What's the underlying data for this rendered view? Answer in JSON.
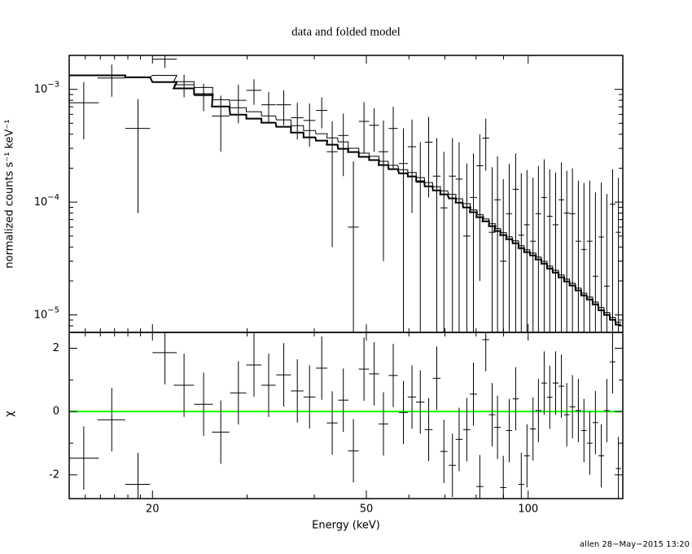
{
  "chart_data": [
    {
      "type": "errorbar",
      "title": "data and folded model",
      "ylabel": "normalized counts s⁻¹ keV⁻¹",
      "xlog": true,
      "ylog": true,
      "ylim": [
        7e-06,
        0.002
      ],
      "yticks": [
        {
          "value": 1e-05,
          "label": "10",
          "sup": "−5"
        },
        {
          "value": 0.0001,
          "label": "10",
          "sup": "−4"
        },
        {
          "value": 0.001,
          "label": "10",
          "sup": "−3"
        }
      ],
      "yticks_minor": [
        8e-06,
        9e-06,
        2e-05,
        3e-05,
        4e-05,
        5e-05,
        6e-05,
        7e-05,
        8e-05,
        9e-05,
        0.0002,
        0.0003,
        0.0004,
        0.0005,
        0.0006,
        0.0007,
        0.0008,
        0.0009
      ],
      "x": [
        14.9,
        16.8,
        18.8,
        21.1,
        22.9,
        24.9,
        26.8,
        28.9,
        30.9,
        32.9,
        35.1,
        37.2,
        39.2,
        41.3,
        43.2,
        45.3,
        47.3,
        49.5,
        51.7,
        53.8,
        56.1,
        58.6,
        60.8,
        63.0,
        65.3,
        67.6,
        69.7,
        72.3,
        74.4,
        76.9,
        79.1,
        81.3,
        83.4,
        85.7,
        87.7,
        89.9,
        92.2,
        94.8,
        97.1,
        99.5,
        102.1,
        104.5,
        107.1,
        109.7,
        112.5,
        115.3,
        118.0,
        120.9,
        124.0,
        127.0,
        130.2,
        133.4,
        136.8,
        140.1,
        143.6,
        147.2
      ],
      "xerr": [
        1.0,
        1.0,
        1.0,
        1.1,
        1.0,
        1.0,
        1.0,
        1.0,
        1.0,
        1.0,
        1.1,
        1.0,
        1.0,
        1.0,
        1.0,
        1.0,
        1.1,
        1.1,
        1.1,
        1.1,
        1.1,
        1.1,
        1.1,
        1.1,
        1.1,
        1.1,
        1.1,
        1.1,
        1.1,
        1.2,
        1.2,
        1.2,
        1.2,
        1.2,
        1.2,
        1.2,
        1.2,
        1.2,
        1.2,
        1.2,
        1.3,
        1.3,
        1.3,
        1.3,
        1.4,
        1.4,
        1.4,
        1.5,
        1.5,
        1.5,
        1.6,
        1.6,
        1.6,
        1.7,
        1.7,
        1.7
      ],
      "series": [
        {
          "style": "errorbar",
          "color": "#000000",
          "line_width": 1,
          "values": [
            0.00076,
            0.00126,
            0.00045,
            0.00185,
            0.0011,
            0.00088,
            0.00058,
            0.0008,
            0.00098,
            0.00073,
            0.00073,
            0.00056,
            0.00053,
            0.00065,
            0.00028,
            0.00039,
            6e-05,
            0.00052,
            0.00048,
            0.00028,
            0.00045,
            0.00022,
            0.00031,
            0.00015,
            0.00034,
            0.00017,
            8.9e-05,
            0.00017,
            0.00016,
            5e-05,
            0.00011,
            0.00021,
            0.00037,
            5.4e-05,
            0.000105,
            3e-05,
            7.9e-05,
            0.00013,
            5.1e-05,
            6.3e-05,
            4.5e-05,
            7.9e-05,
            0.00011,
            7.5e-05,
            6.3e-05,
            0.000105,
            8e-05,
            7.9e-05,
            4.5e-05,
            3.8e-05,
            4.5e-05,
            2.2e-05,
            4.9e-05,
            1.8e-05,
            9.6e-05,
            5.4e-05
          ],
          "yerr": [
            0.0004,
            0.0004,
            0.00037,
            0.0003,
            0.00025,
            0.00024,
            0.0003,
            0.0003,
            0.00025,
            0.00022,
            0.00025,
            0.0002,
            0.00022,
            0.0002,
            0.00024,
            0.00022,
            0.00017,
            0.00025,
            0.0002,
            0.00025,
            0.00025,
            0.00023,
            0.00023,
            0.00019,
            0.00023,
            0.0002,
            0.00019,
            0.0002,
            0.00018,
            0.00017,
            0.00016,
            0.00019,
            0.00018,
            0.00015,
            0.00015,
            0.00013,
            0.00014,
            0.00014,
            0.00013,
            0.00013,
            0.00012,
            0.00013,
            0.00013,
            0.00012,
            0.00012,
            0.00012,
            0.00011,
            0.00012,
            0.00011,
            0.00011,
            0.00011,
            0.0001,
            0.0001,
            0.0001,
            0.0001,
            0.00011
          ]
        },
        {
          "style": "step",
          "color": "#000000",
          "line_width": 1,
          "values": [
            0.00133,
            0.00133,
            0.00128,
            0.00133,
            0.00117,
            0.00104,
            0.00081,
            0.000687,
            0.000633,
            0.000582,
            0.000536,
            0.000476,
            0.000431,
            0.000404,
            0.000371,
            0.000342,
            0.0003,
            0.000272,
            0.000255,
            0.00023,
            0.000212,
            0.000194,
            0.000183,
            0.000165,
            0.000149,
            0.000137,
            0.000126,
            0.000117,
            0.000107,
            9.69e-05,
            8.54e-05,
            7.72e-05,
            7.1e-05,
            6.43e-05,
            5.82e-05,
            5.36e-05,
            4.92e-05,
            4.54e-05,
            4.11e-05,
            3.78e-05,
            3.54e-05,
            3.26e-05,
            2.99e-05,
            2.71e-05,
            2.49e-05,
            2.26e-05,
            2.08e-05,
            1.91e-05,
            1.73e-05,
            1.56e-05,
            1.44e-05,
            1.3e-05,
            1.16e-05,
            1.05e-05,
            9.51e-06,
            8.61e-06
          ]
        },
        {
          "style": "step",
          "color": "#000000",
          "line_width": 2,
          "values": [
            0.00133,
            0.00133,
            0.00128,
            0.00116,
            0.00102,
            0.000905,
            0.000705,
            0.000597,
            0.00055,
            0.000506,
            0.000466,
            0.000414,
            0.000375,
            0.000351,
            0.000323,
            0.000297,
            0.000278,
            0.000252,
            0.000236,
            0.000213,
            0.000196,
            0.00018,
            0.000169,
            0.000153,
            0.000138,
            0.000127,
            0.000117,
            0.000108,
            9.9e-05,
            8.97e-05,
            8.13e-05,
            7.35e-05,
            6.76e-05,
            6.12e-05,
            5.54e-05,
            5.1e-05,
            4.69e-05,
            4.32e-05,
            3.91e-05,
            3.6e-05,
            3.37e-05,
            3.1e-05,
            2.85e-05,
            2.58e-05,
            2.37e-05,
            2.15e-05,
            1.98e-05,
            1.82e-05,
            1.65e-05,
            1.49e-05,
            1.37e-05,
            1.24e-05,
            1.1e-05,
            1e-05,
            9.06e-06,
            8.2e-06
          ]
        }
      ]
    },
    {
      "type": "errorbar",
      "xlabel": "Energy (keV)",
      "ylabel": "χ",
      "xlog": true,
      "xlim": [
        14,
        150
      ],
      "xticks": [
        20,
        50,
        100
      ],
      "xticks_minor": [
        15,
        16,
        17,
        18,
        19,
        30,
        40,
        60,
        70,
        80,
        90
      ],
      "ylim": [
        -2.75,
        2.5
      ],
      "yticks": [
        -2,
        0,
        2
      ],
      "yticks_minor": [
        -1,
        1
      ],
      "reference_line": {
        "value": 0,
        "color": "#00ff00"
      },
      "series": [
        {
          "style": "errorbar",
          "color": "#000000",
          "line_width": 1,
          "values": [
            -1.47,
            -0.26,
            -2.3,
            1.86,
            0.83,
            0.23,
            -0.65,
            0.59,
            1.47,
            0.83,
            1.16,
            0.65,
            0.46,
            1.37,
            -0.36,
            0.36,
            -1.24,
            1.34,
            1.19,
            -0.39,
            1.14,
            -0.03,
            0.46,
            0.3,
            -0.57,
            1.05,
            -1.26,
            -1.7,
            -0.88,
            -0.57,
            0.55,
            -2.37,
            2.27,
            -0.1,
            -0.5,
            -2.4,
            -0.6,
            0.4,
            -2.3,
            -1.4,
            -0.55,
            0.03,
            0.9,
            0.45,
            0.9,
            0.8,
            -0.1,
            0.15,
            0.03,
            -0.6,
            -1.0,
            -0.35,
            -1.4,
            0.03,
            1.57,
            -1.8
          ],
          "yerr": [
            1,
            1,
            1,
            1,
            1,
            1,
            1,
            1,
            1,
            1,
            1,
            1,
            1,
            1,
            1,
            1,
            1,
            1,
            1,
            1,
            1,
            1,
            1,
            1,
            1,
            1,
            1,
            1,
            1,
            1,
            1,
            1,
            1,
            1,
            1,
            1,
            1,
            1,
            1,
            1,
            1,
            1,
            1,
            1,
            1,
            1,
            1,
            1,
            1,
            1,
            1,
            1,
            1,
            1,
            1,
            1
          ]
        }
      ]
    }
  ],
  "footer": "allen 28−May−2015 13:20"
}
